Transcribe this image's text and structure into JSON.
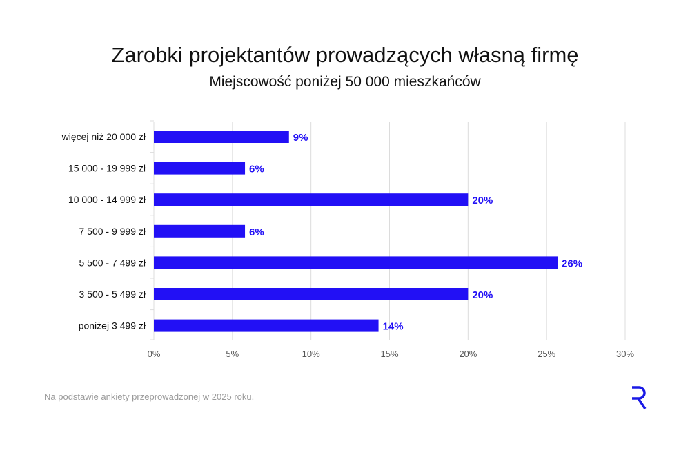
{
  "chart_data": {
    "type": "bar",
    "orientation": "horizontal",
    "title": "Zarobki projektantów prowadzących własną firmę",
    "subtitle": "Miejscowość poniżej 50 000 mieszkańców",
    "categories": [
      "więcej niż 20 000 zł",
      "15 000 - 19 999 zł",
      "10 000 - 14 999 zł",
      "7 500 - 9 999 zł",
      "5 500 - 7 499 zł",
      "3 500 - 5 499 zł",
      "poniżej 3 499 zł"
    ],
    "values": [
      8.6,
      5.8,
      20.0,
      5.8,
      25.7,
      20.0,
      14.3
    ],
    "data_labels": [
      "9%",
      "6%",
      "20%",
      "6%",
      "26%",
      "20%",
      "14%"
    ],
    "xlim": [
      0,
      30
    ],
    "xticks": [
      0,
      5,
      10,
      15,
      20,
      25,
      30
    ],
    "xtick_labels": [
      "0%",
      "5%",
      "10%",
      "15%",
      "20%",
      "25%",
      "30%"
    ],
    "grid": "vertical",
    "bar_color": "#2210f5",
    "label_color": "#2210f5"
  },
  "footer": {
    "note": "Na podstawie ankiety przeprowadzonej w 2025 roku."
  },
  "logo": {
    "letter": "R",
    "color": "#1a1ae6"
  }
}
